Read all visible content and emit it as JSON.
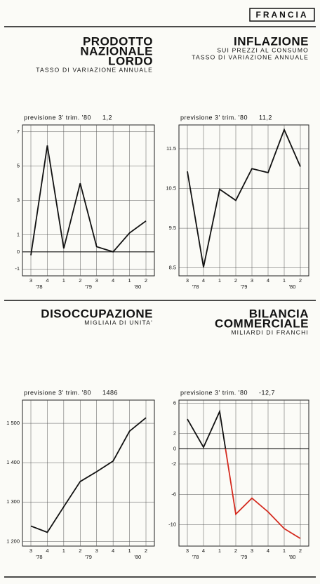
{
  "header": "FRANCIA",
  "chart_data": [
    {
      "type": "line",
      "title": [
        "PRODOTTO",
        "NAZIONALE",
        "LORDO"
      ],
      "subtitle": [
        "TASSO DI VARIAZIONE ANNUALE"
      ],
      "annotation": "previsione 3' trim. '80",
      "forecast_label": "1,2",
      "categories": [
        "3",
        "4",
        "1",
        "2",
        "3",
        "4",
        "1",
        "2"
      ],
      "year_labels": [
        "'78",
        "'79",
        "'80"
      ],
      "series": [
        {
          "color": "#111111",
          "values": [
            -0.2,
            6.2,
            0.2,
            4.0,
            0.3,
            0.0,
            1.1,
            1.8
          ]
        }
      ],
      "ylim": [
        -1.4,
        7.4
      ],
      "yticks": [
        7,
        5,
        3,
        1,
        0,
        -1
      ],
      "grid": true
    },
    {
      "type": "line",
      "title": [
        "INFLAZIONE"
      ],
      "subtitle": [
        "SUI PREZZI AL CONSUMO",
        "TASSO DI VARIAZIONE ANNUALE"
      ],
      "annotation": "previsione 3' trim. '80",
      "forecast_label": "11,2",
      "categories": [
        "3",
        "4",
        "1",
        "2",
        "3",
        "4",
        "1",
        "2"
      ],
      "year_labels": [
        "'78",
        "'79",
        "'80"
      ],
      "series": [
        {
          "color": "#111111",
          "values": [
            10.93,
            8.52,
            10.48,
            10.2,
            11.0,
            10.9,
            11.98,
            11.05
          ]
        }
      ],
      "ylim": [
        8.3,
        12.1
      ],
      "yticks": [
        11.5,
        10.5,
        9.5,
        8.5
      ],
      "grid": true
    },
    {
      "type": "line",
      "title": [
        "DISOCCUPAZIONE"
      ],
      "subtitle": [
        "MIGLIAIA DI UNITA'"
      ],
      "annotation": "previsione 3' trim. '80",
      "forecast_label": "1486",
      "categories": [
        "3",
        "4",
        "1",
        "2",
        "3",
        "4",
        "1",
        "2"
      ],
      "year_labels": [
        "'78",
        "'79",
        "'80"
      ],
      "series": [
        {
          "color": "#111111",
          "values": [
            1239,
            1223,
            1288,
            1352,
            1377,
            1404,
            1480,
            1514
          ]
        }
      ],
      "ylim": [
        1188,
        1559
      ],
      "yticks": [
        {
          "value": 1500,
          "label": "1 500"
        },
        {
          "value": 1400,
          "label": "1 400"
        },
        {
          "value": 1300,
          "label": "1 300"
        },
        {
          "value": 1200,
          "label": "1 200"
        }
      ],
      "grid": true
    },
    {
      "type": "line",
      "title": [
        "BILANCIA",
        "COMMERCIALE"
      ],
      "subtitle": [
        "MILIARDI DI FRANCHI"
      ],
      "annotation": "previsione 3' trim. '80",
      "forecast_label": "-12,7",
      "categories": [
        "3",
        "4",
        "1",
        "2",
        "3",
        "4",
        "1",
        "2"
      ],
      "year_labels": [
        "'78",
        "'79",
        "'80"
      ],
      "series": [
        {
          "color": "#111111",
          "negative_color": "#d42a1e",
          "values": [
            3.9,
            0.2,
            4.9,
            -8.6,
            -6.5,
            -8.3,
            -10.5,
            -11.8
          ]
        }
      ],
      "ylim": [
        -12.8,
        6.4
      ],
      "yticks": [
        6,
        2,
        0,
        -2,
        -6,
        -10
      ],
      "grid": true
    }
  ]
}
